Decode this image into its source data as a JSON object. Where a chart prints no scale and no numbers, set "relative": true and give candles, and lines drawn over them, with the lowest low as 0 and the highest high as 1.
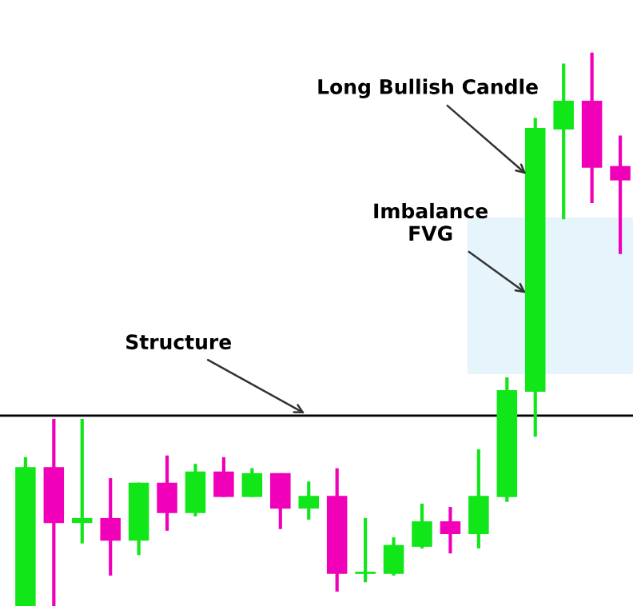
{
  "chart_data": {
    "type": "candlestick",
    "relative": true,
    "categories": [
      null,
      null,
      null,
      null,
      null,
      null,
      null,
      null,
      null,
      null,
      null,
      null,
      null,
      null,
      null,
      null,
      null,
      null,
      null,
      null,
      null,
      null
    ],
    "ohlc": [
      [
        0,
        0.269,
        0,
        0.251
      ],
      [
        0.251,
        0.338,
        0,
        0.15
      ],
      [
        0.15,
        0.338,
        0.113,
        0.159
      ],
      [
        0.159,
        0.231,
        0.055,
        0.118
      ],
      [
        0.118,
        0.223,
        0.092,
        0.223
      ],
      [
        0.223,
        0.272,
        0.136,
        0.168
      ],
      [
        0.168,
        0.257,
        0.162,
        0.243
      ],
      [
        0.243,
        0.269,
        0.197,
        0.197
      ],
      [
        0.197,
        0.249,
        0.197,
        0.24
      ],
      [
        0.24,
        0.24,
        0.139,
        0.176
      ],
      [
        0.176,
        0.225,
        0.156,
        0.199
      ],
      [
        0.199,
        0.249,
        0.026,
        0.058
      ],
      [
        0.058,
        0.159,
        0.043,
        0.061
      ],
      [
        0.058,
        0.124,
        0.055,
        0.11
      ],
      [
        0.107,
        0.185,
        0.104,
        0.153
      ],
      [
        0.153,
        0.179,
        0.095,
        0.13
      ],
      [
        0.13,
        0.283,
        0.104,
        0.199
      ],
      [
        0.197,
        0.413,
        0.188,
        0.39
      ],
      [
        0.387,
        0.882,
        0.306,
        0.864
      ],
      [
        0.861,
        0.98,
        0.699,
        0.913
      ],
      [
        0.913,
        1,
        0.728,
        0.792
      ],
      [
        0.795,
        0.85,
        0.636,
        0.769
      ]
    ],
    "colors": [
      "#11e619",
      "#f000b8",
      "#11e619",
      "#f000b8",
      "#11e619",
      "#f000b8",
      "#11e619",
      "#f000b8",
      "#11e619",
      "#f000b8",
      "#11e619",
      "#f000b8",
      "#11e619",
      "#11e619",
      "#11e619",
      "#f000b8",
      "#11e619",
      "#11e619",
      "#11e619",
      "#11e619",
      "#f000b8",
      "#f000b8"
    ],
    "ref_lines": [
      {
        "axis": "y",
        "value": 0.344,
        "label": "Structure",
        "color": "#000000"
      }
    ],
    "bands": [
      {
        "axis": "y",
        "from": 0.419,
        "to": 0.702,
        "label": "Imbalance\nFVG",
        "color": "#e6f5fb"
      }
    ],
    "annotations": [
      "Long Bullish Candle"
    ],
    "legend": false
  }
}
